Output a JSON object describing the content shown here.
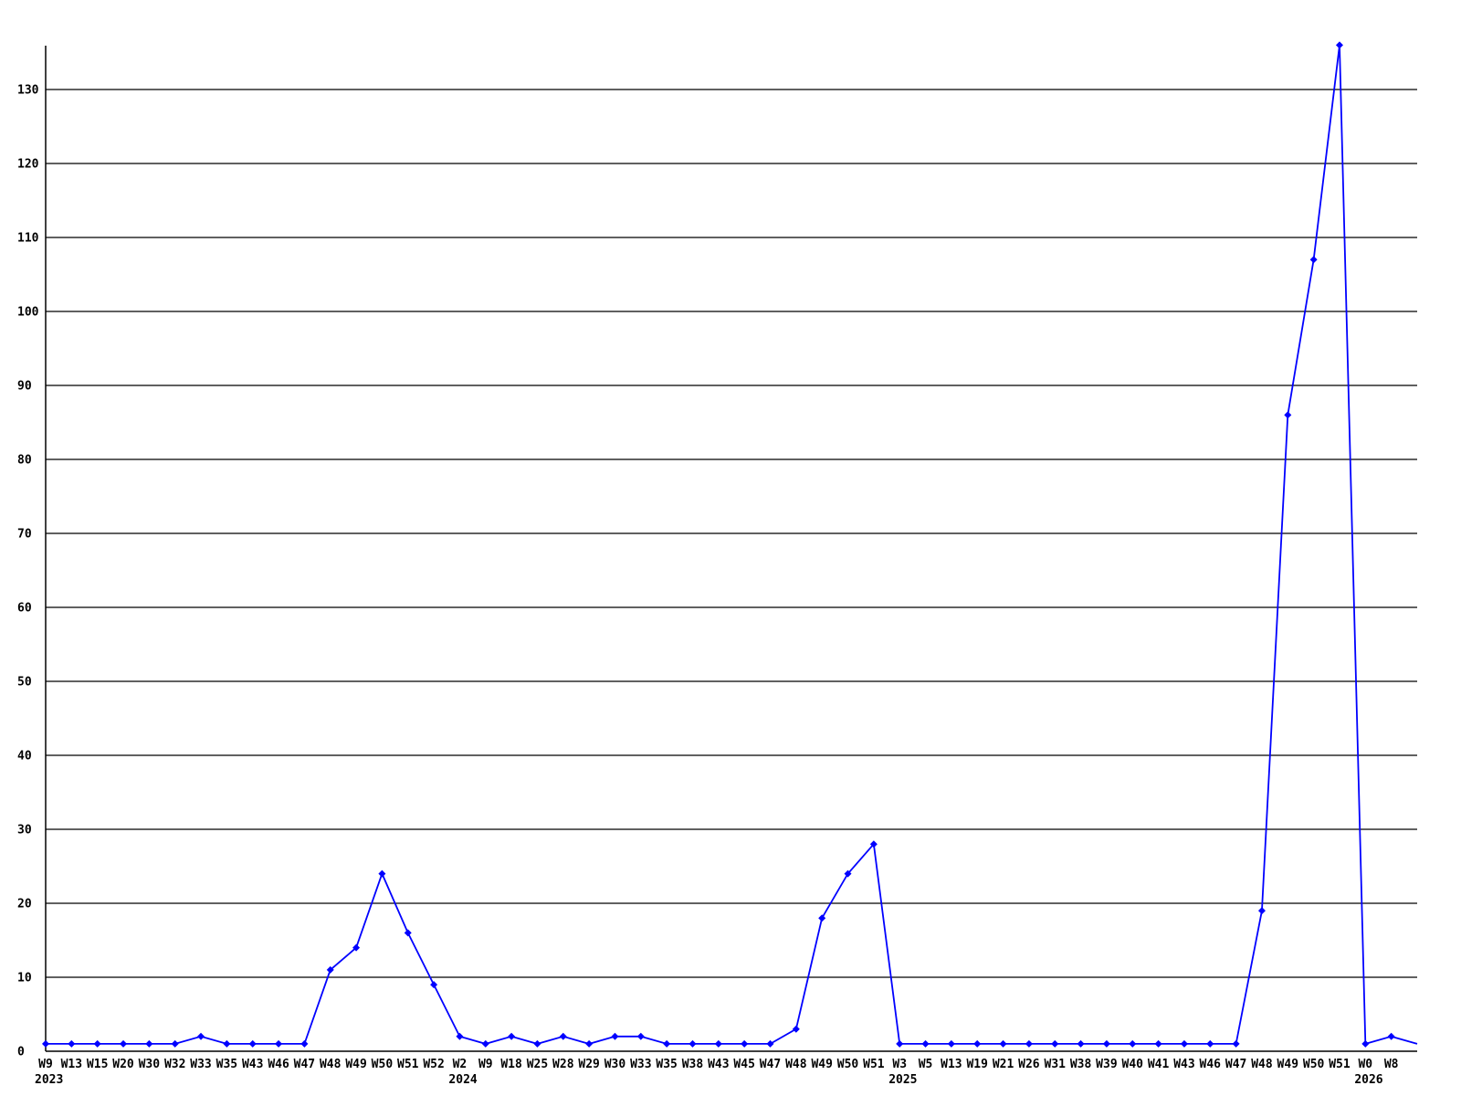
{
  "chart_data": {
    "type": "line",
    "title": "",
    "xlabel": "",
    "ylabel": "",
    "grid": true,
    "legend": null,
    "line_color": "#0000ff",
    "marker_color": "#0000ff",
    "grid_color": "#000000",
    "axis_color": "#000000",
    "background_color": "#ffffff",
    "ylim": [
      0,
      136
    ],
    "ytick_interval": 10,
    "yticks": [
      0,
      10,
      20,
      30,
      40,
      50,
      60,
      70,
      80,
      90,
      100,
      110,
      120,
      130
    ],
    "points": [
      {
        "week": "W9",
        "value": 1
      },
      {
        "week": "W13",
        "value": 1
      },
      {
        "week": "W15",
        "value": 1
      },
      {
        "week": "W20",
        "value": 1
      },
      {
        "week": "W30",
        "value": 1
      },
      {
        "week": "W32",
        "value": 1
      },
      {
        "week": "W33",
        "value": 2
      },
      {
        "week": "W35",
        "value": 1
      },
      {
        "week": "W43",
        "value": 1
      },
      {
        "week": "W46",
        "value": 1
      },
      {
        "week": "W47",
        "value": 1
      },
      {
        "week": "W48",
        "value": 11
      },
      {
        "week": "W49",
        "value": 14
      },
      {
        "week": "W50",
        "value": 24
      },
      {
        "week": "W51",
        "value": 16
      },
      {
        "week": "W52",
        "value": 9
      },
      {
        "week": "W2",
        "value": 2
      },
      {
        "week": "W9",
        "value": 1
      },
      {
        "week": "W18",
        "value": 2
      },
      {
        "week": "W25",
        "value": 1
      },
      {
        "week": "W28",
        "value": 2
      },
      {
        "week": "W29",
        "value": 1
      },
      {
        "week": "W30",
        "value": 2
      },
      {
        "week": "W33",
        "value": 2
      },
      {
        "week": "W35",
        "value": 1
      },
      {
        "week": "W38",
        "value": 1
      },
      {
        "week": "W43",
        "value": 1
      },
      {
        "week": "W45",
        "value": 1
      },
      {
        "week": "W47",
        "value": 1
      },
      {
        "week": "W48",
        "value": 3
      },
      {
        "week": "W49",
        "value": 18
      },
      {
        "week": "W50",
        "value": 24
      },
      {
        "week": "W51",
        "value": 28
      },
      {
        "week": "W3",
        "value": 1
      },
      {
        "week": "W5",
        "value": 1
      },
      {
        "week": "W13",
        "value": 1
      },
      {
        "week": "W19",
        "value": 1
      },
      {
        "week": "W21",
        "value": 1
      },
      {
        "week": "W26",
        "value": 1
      },
      {
        "week": "W31",
        "value": 1
      },
      {
        "week": "W38",
        "value": 1
      },
      {
        "week": "W39",
        "value": 1
      },
      {
        "week": "W40",
        "value": 1
      },
      {
        "week": "W41",
        "value": 1
      },
      {
        "week": "W43",
        "value": 1
      },
      {
        "week": "W46",
        "value": 1
      },
      {
        "week": "W47",
        "value": 1
      },
      {
        "week": "W48",
        "value": 19
      },
      {
        "week": "W49",
        "value": 86
      },
      {
        "week": "W50",
        "value": 107
      },
      {
        "week": "W51",
        "value": 136
      },
      {
        "week": "W0",
        "value": 1
      },
      {
        "week": "W8",
        "value": 2
      }
    ],
    "year_starts": [
      {
        "point_index": 0,
        "year": "2023"
      },
      {
        "point_index": 16,
        "year": "2024"
      },
      {
        "point_index": 33,
        "year": "2025"
      },
      {
        "point_index": 51,
        "year": "2026"
      }
    ],
    "trailing_value": 1
  }
}
